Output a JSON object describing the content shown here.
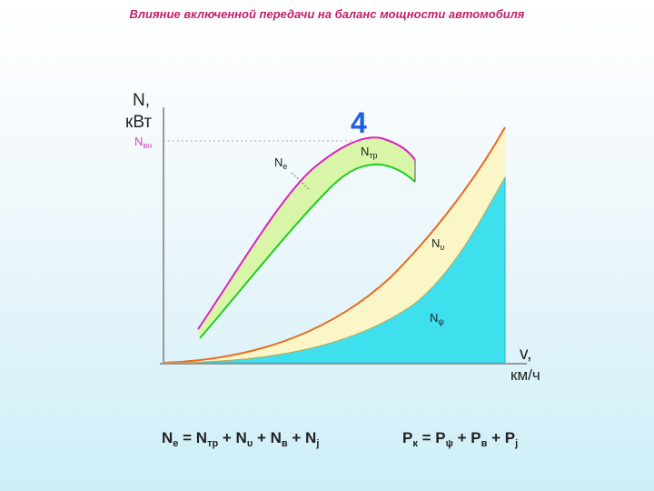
{
  "title": "Влияние включенной передачи на баланс мощности автомобиля",
  "y_axis": {
    "symbol": "N,",
    "unit": "кВт"
  },
  "x_axis": {
    "symbol": "v,",
    "unit": "км/ч"
  },
  "n_max_label": {
    "main": "N",
    "sub": "вн"
  },
  "gear_number": "4",
  "curve_labels": {
    "ne": {
      "main": "N",
      "sub": "e"
    },
    "ntr": {
      "main": "N",
      "sub": "тр"
    },
    "nv": {
      "main": "N",
      "sub": "υ"
    },
    "npsi": {
      "main": "N",
      "sub": "ψ"
    }
  },
  "formula_left": {
    "t1": "N",
    "s1": "e",
    "t2": " = N",
    "s2": "тр",
    "t3": " + N",
    "s3": "υ",
    "t4": " + N",
    "s4": "в",
    "t5": " + N",
    "s5": "j"
  },
  "formula_right": {
    "t1": "P",
    "s1": "к",
    "t2": " = P",
    "s2": "ψ",
    "t3": " + P",
    "s3": "в",
    "t4": " + P",
    "s4": "j"
  },
  "colors": {
    "title": "#c0206a",
    "engine_curve": "#e020c0",
    "wheel_curve": "#20d020",
    "band_green": "#d8f5a8",
    "resistance_curve": "#e86a1e",
    "band_yellow": "#fbf6c8",
    "road_fill": "#3ee0ee",
    "gear_number": "#1d5fe0",
    "n_max": "#e040c0"
  }
}
